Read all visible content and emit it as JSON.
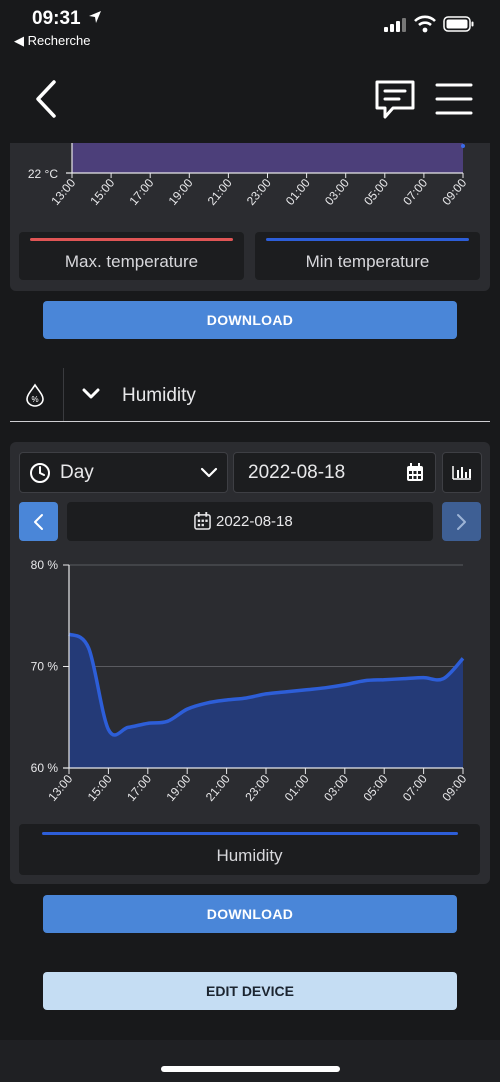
{
  "status": {
    "time": "09:31",
    "back_app": "◀ Recherche"
  },
  "temperature": {
    "y_tick_label": "22 °C",
    "x_ticks": [
      "13:00",
      "15:00",
      "17:00",
      "19:00",
      "21:00",
      "23:00",
      "01:00",
      "03:00",
      "05:00",
      "07:00",
      "09:00"
    ],
    "legend": [
      {
        "label": "Max. temperature",
        "color": "#e05555"
      },
      {
        "label": "Min temperature",
        "color": "#2d5ed8"
      }
    ],
    "download_label": "DOWNLOAD"
  },
  "humidity": {
    "section_title": "Humidity",
    "period_value": "Day",
    "date_value": "2022-08-18",
    "nav_date": "2022-08-18",
    "legend_label": "Humidity",
    "download_label": "DOWNLOAD"
  },
  "edit_label": "EDIT DEVICE",
  "colors": {
    "accent": "#4a86d8",
    "series": "#2d5ed8",
    "fill": "#243a77"
  },
  "chart_data": {
    "type": "area",
    "x": [
      "13:00",
      "14:00",
      "15:00",
      "16:00",
      "17:00",
      "18:00",
      "19:00",
      "20:00",
      "21:00",
      "22:00",
      "23:00",
      "00:00",
      "01:00",
      "02:00",
      "03:00",
      "04:00",
      "05:00",
      "06:00",
      "07:00",
      "08:00",
      "09:00"
    ],
    "series": [
      {
        "name": "Humidity",
        "values": [
          73.2,
          71.8,
          63.8,
          64.0,
          64.4,
          64.6,
          65.8,
          66.4,
          66.7,
          66.9,
          67.3,
          67.5,
          67.7,
          67.9,
          68.2,
          68.6,
          68.7,
          68.8,
          68.9,
          68.8,
          70.8
        ]
      }
    ],
    "x_tick_labels": [
      "13:00",
      "15:00",
      "17:00",
      "19:00",
      "21:00",
      "23:00",
      "01:00",
      "03:00",
      "05:00",
      "07:00",
      "09:00"
    ],
    "y_tick_labels": [
      "60 %",
      "70 %",
      "80 %"
    ],
    "ylim": [
      60,
      80
    ],
    "grid": true,
    "legend": "bottom"
  }
}
